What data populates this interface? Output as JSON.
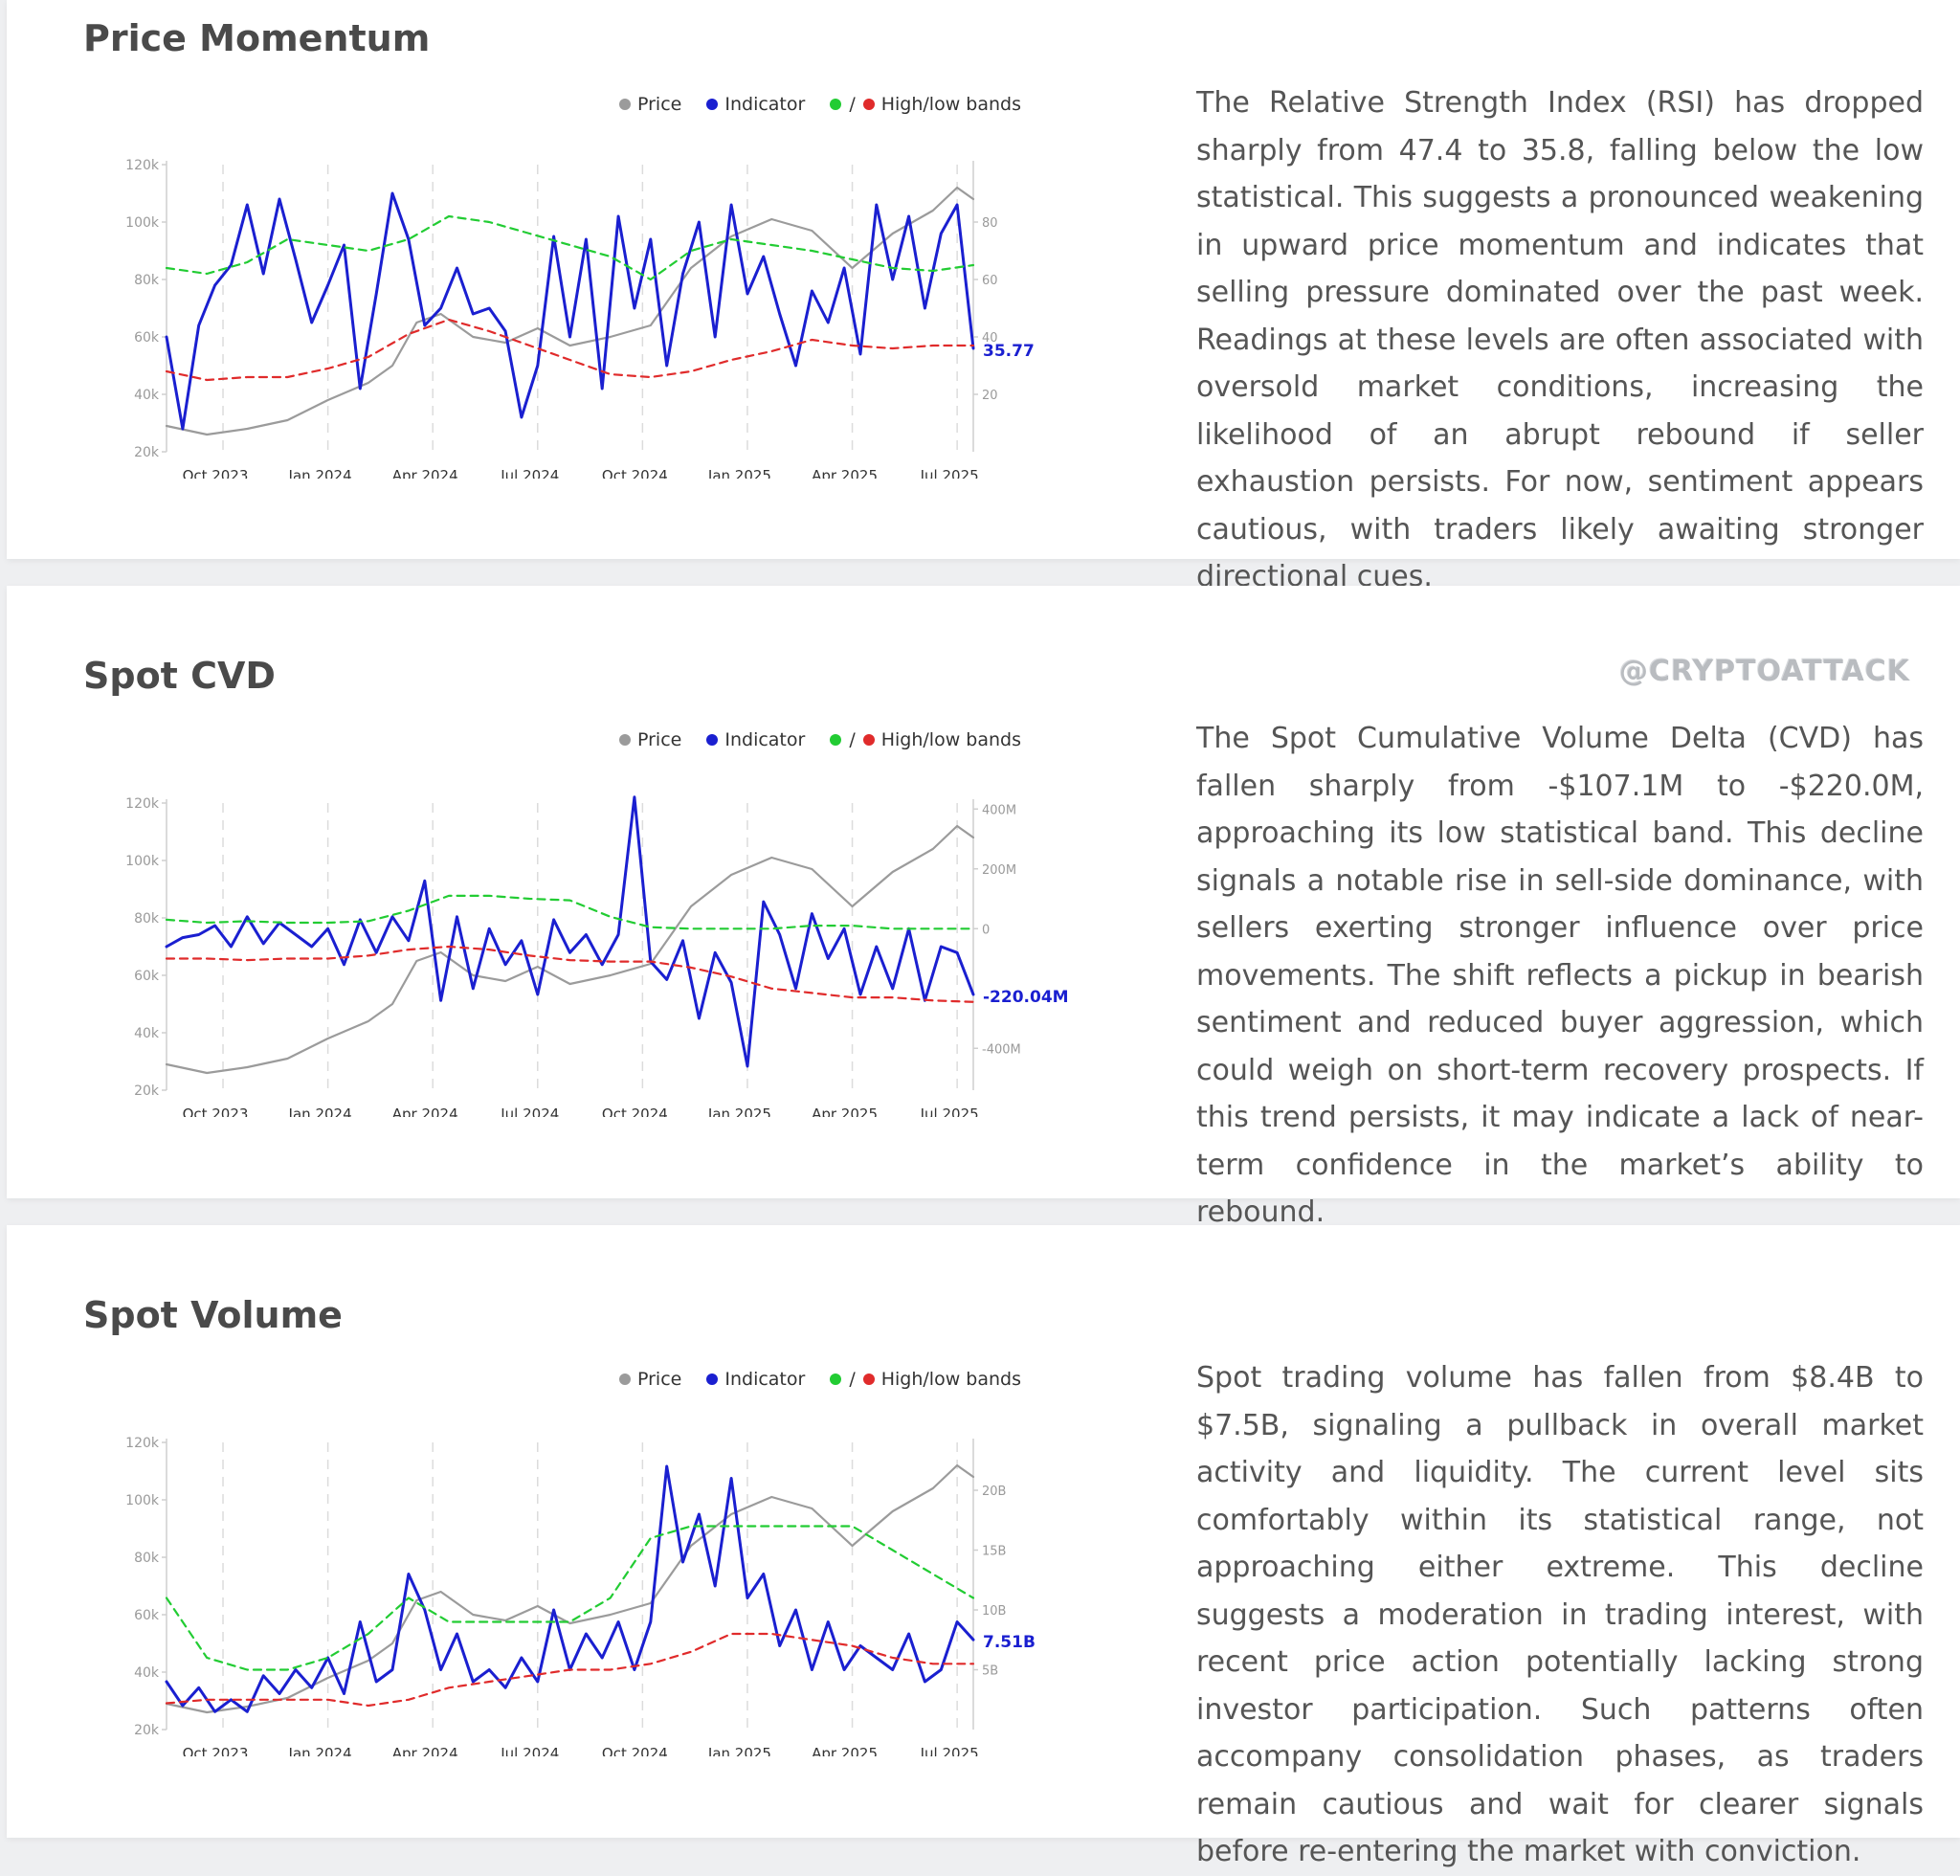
{
  "legend": {
    "price": "Price",
    "indicator": "Indicator",
    "bands": "High/low bands",
    "colors": {
      "price": "#9b9b9b",
      "indicator": "#1a1fd0",
      "high": "#22cc33",
      "low": "#e02b2b"
    }
  },
  "watermark": "@CRYPTOATTACK",
  "panels": [
    {
      "title": "Price Momentum",
      "description": "The Relative Strength Index (RSI) has dropped sharply from 47.4 to 35.8, falling below the low statistical. This suggests a pronounced weakening in upward price momentum and indicates that selling pressure dominated over the past week. Readings at these levels are often associated with oversold market conditions, increasing the likelihood of an abrupt rebound if seller exhaustion persists. For now, sentiment appears cautious, with traders likely awaiting stronger directional cues."
    },
    {
      "title": "Spot CVD",
      "description": "The Spot Cumulative Volume Delta (CVD) has fallen sharply from -$107.1M to -$220.0M, approaching its low statistical band. This decline signals a notable rise in sell-side dominance, with sellers exerting stronger influence over price movements. The shift reflects a pickup in bearish sentiment and reduced buyer aggression, which could weigh on short-term recovery prospects. If this trend persists, it may indicate a lack of near-term confidence in the market’s ability to rebound."
    },
    {
      "title": "Spot Volume",
      "description": "Spot trading volume has fallen from $8.4B to $7.5B, signaling a pullback in overall market activity and liquidity. The current level sits comfortably within its statistical range, not approaching either extreme. This decline suggests a moderation in trading interest, with recent price action potentially lacking strong investor participation. Such patterns often accompany consolidation phases, as traders remain cautious and wait for clearer signals before re-entering the market with conviction."
    }
  ],
  "chart_data": [
    {
      "type": "line",
      "x_tick_labels": [
        "Oct 2023",
        "Jan 2024",
        "Apr 2024",
        "Jul 2024",
        "Oct 2024",
        "Jan 2025",
        "Apr 2025",
        "Jul 2025"
      ],
      "x_ticks_t": [
        0.07,
        0.2,
        0.33,
        0.46,
        0.59,
        0.72,
        0.85,
        0.98
      ],
      "xlim": [
        0,
        1
      ],
      "left_axis": {
        "ticks": [
          "20k",
          "40k",
          "60k",
          "80k",
          "100k",
          "120k"
        ],
        "values": [
          20,
          40,
          60,
          80,
          100,
          120
        ],
        "ylim": [
          20,
          120
        ]
      },
      "right_axis": {
        "ticks": [
          "20",
          "40",
          "60",
          "80"
        ],
        "values": [
          20,
          40,
          60,
          80
        ],
        "ylim": [
          0,
          100
        ]
      },
      "last_value_label": "35.77",
      "series": [
        {
          "name": "Price",
          "axis": "left",
          "x": [
            0,
            0.05,
            0.1,
            0.15,
            0.2,
            0.25,
            0.28,
            0.31,
            0.34,
            0.38,
            0.42,
            0.46,
            0.5,
            0.55,
            0.6,
            0.65,
            0.7,
            0.75,
            0.8,
            0.85,
            0.9,
            0.95,
            0.98,
            1
          ],
          "y": [
            29,
            26,
            28,
            31,
            38,
            44,
            50,
            65,
            68,
            60,
            58,
            63,
            57,
            60,
            64,
            84,
            95,
            101,
            97,
            84,
            96,
            104,
            112,
            108
          ]
        },
        {
          "name": "Indicator",
          "axis": "right",
          "x": [
            0,
            0.02,
            0.04,
            0.06,
            0.08,
            0.1,
            0.12,
            0.14,
            0.16,
            0.18,
            0.2,
            0.22,
            0.24,
            0.26,
            0.28,
            0.3,
            0.32,
            0.34,
            0.36,
            0.38,
            0.4,
            0.42,
            0.44,
            0.46,
            0.48,
            0.5,
            0.52,
            0.54,
            0.56,
            0.58,
            0.6,
            0.62,
            0.64,
            0.66,
            0.68,
            0.7,
            0.72,
            0.74,
            0.76,
            0.78,
            0.8,
            0.82,
            0.84,
            0.86,
            0.88,
            0.9,
            0.92,
            0.94,
            0.96,
            0.98,
            1
          ],
          "y": [
            40,
            8,
            44,
            58,
            65,
            86,
            62,
            88,
            67,
            45,
            58,
            72,
            22,
            55,
            90,
            74,
            44,
            50,
            64,
            48,
            50,
            42,
            12,
            30,
            75,
            40,
            74,
            22,
            82,
            50,
            74,
            30,
            62,
            80,
            40,
            86,
            55,
            68,
            48,
            30,
            56,
            45,
            64,
            34,
            86,
            60,
            82,
            50,
            76,
            86,
            36
          ]
        },
        {
          "name": "High band",
          "axis": "right",
          "x": [
            0,
            0.05,
            0.1,
            0.15,
            0.2,
            0.25,
            0.3,
            0.35,
            0.4,
            0.45,
            0.5,
            0.55,
            0.6,
            0.65,
            0.7,
            0.75,
            0.8,
            0.85,
            0.9,
            0.95,
            1
          ],
          "y": [
            64,
            62,
            66,
            74,
            72,
            70,
            74,
            82,
            80,
            76,
            72,
            68,
            60,
            70,
            74,
            72,
            70,
            67,
            64,
            63,
            65
          ]
        },
        {
          "name": "Low band",
          "axis": "right",
          "x": [
            0,
            0.05,
            0.1,
            0.15,
            0.2,
            0.25,
            0.3,
            0.35,
            0.4,
            0.45,
            0.5,
            0.55,
            0.6,
            0.65,
            0.7,
            0.75,
            0.8,
            0.85,
            0.9,
            0.95,
            1
          ],
          "y": [
            28,
            25,
            26,
            26,
            29,
            33,
            41,
            46,
            42,
            37,
            32,
            27,
            26,
            28,
            32,
            35,
            39,
            37,
            36,
            37,
            37
          ]
        }
      ]
    },
    {
      "type": "line",
      "x_tick_labels": [
        "Oct 2023",
        "Jan 2024",
        "Apr 2024",
        "Jul 2024",
        "Oct 2024",
        "Jan 2025",
        "Apr 2025",
        "Jul 2025"
      ],
      "x_ticks_t": [
        0.07,
        0.2,
        0.33,
        0.46,
        0.59,
        0.72,
        0.85,
        0.98
      ],
      "xlim": [
        0,
        1
      ],
      "left_axis": {
        "ticks": [
          "20k",
          "40k",
          "60k",
          "80k",
          "100k",
          "120k"
        ],
        "values": [
          20,
          40,
          60,
          80,
          100,
          120
        ],
        "ylim": [
          20,
          120
        ]
      },
      "right_axis": {
        "ticks": [
          "-400M",
          "0",
          "200M",
          "400M"
        ],
        "values": [
          -400,
          0,
          200,
          400
        ],
        "ylim": [
          -540,
          420
        ]
      },
      "last_value_label": "-220.04M",
      "series": [
        {
          "name": "Price",
          "axis": "left",
          "x": [
            0,
            0.05,
            0.1,
            0.15,
            0.2,
            0.25,
            0.28,
            0.31,
            0.34,
            0.38,
            0.42,
            0.46,
            0.5,
            0.55,
            0.6,
            0.65,
            0.7,
            0.75,
            0.8,
            0.85,
            0.9,
            0.95,
            0.98,
            1
          ],
          "y": [
            29,
            26,
            28,
            31,
            38,
            44,
            50,
            65,
            68,
            60,
            58,
            63,
            57,
            60,
            64,
            84,
            95,
            101,
            97,
            84,
            96,
            104,
            112,
            108
          ]
        },
        {
          "name": "Indicator",
          "axis": "right",
          "x": [
            0,
            0.02,
            0.04,
            0.06,
            0.08,
            0.1,
            0.12,
            0.14,
            0.16,
            0.18,
            0.2,
            0.22,
            0.24,
            0.26,
            0.28,
            0.3,
            0.32,
            0.34,
            0.36,
            0.38,
            0.4,
            0.42,
            0.44,
            0.46,
            0.48,
            0.5,
            0.52,
            0.54,
            0.56,
            0.58,
            0.6,
            0.62,
            0.64,
            0.66,
            0.68,
            0.7,
            0.72,
            0.74,
            0.76,
            0.78,
            0.8,
            0.82,
            0.84,
            0.86,
            0.88,
            0.9,
            0.92,
            0.94,
            0.96,
            0.98,
            1
          ],
          "y": [
            -60,
            -30,
            -20,
            10,
            -60,
            40,
            -50,
            20,
            -20,
            -60,
            0,
            -120,
            30,
            -80,
            40,
            -40,
            160,
            -240,
            40,
            -200,
            0,
            -120,
            -40,
            -220,
            30,
            -80,
            -20,
            -120,
            -20,
            440,
            -110,
            -170,
            -40,
            -300,
            -80,
            -180,
            -460,
            90,
            -20,
            -200,
            50,
            -100,
            0,
            -220,
            -60,
            -200,
            0,
            -240,
            -60,
            -80,
            -220
          ]
        },
        {
          "name": "High band",
          "axis": "right",
          "x": [
            0,
            0.05,
            0.1,
            0.15,
            0.2,
            0.25,
            0.3,
            0.35,
            0.4,
            0.45,
            0.5,
            0.55,
            0.6,
            0.65,
            0.7,
            0.75,
            0.8,
            0.85,
            0.9,
            0.95,
            1
          ],
          "y": [
            30,
            20,
            25,
            20,
            20,
            25,
            60,
            110,
            110,
            100,
            95,
            40,
            5,
            0,
            0,
            0,
            10,
            10,
            0,
            0,
            0
          ]
        },
        {
          "name": "Low band",
          "axis": "right",
          "x": [
            0,
            0.05,
            0.1,
            0.15,
            0.2,
            0.25,
            0.3,
            0.35,
            0.4,
            0.45,
            0.5,
            0.55,
            0.6,
            0.65,
            0.7,
            0.75,
            0.8,
            0.85,
            0.9,
            0.95,
            1
          ],
          "y": [
            -100,
            -100,
            -105,
            -100,
            -100,
            -90,
            -70,
            -60,
            -70,
            -90,
            -105,
            -110,
            -110,
            -130,
            -160,
            -200,
            -215,
            -230,
            -230,
            -240,
            -245
          ]
        }
      ]
    },
    {
      "type": "line",
      "x_tick_labels": [
        "Oct 2023",
        "Jan 2024",
        "Apr 2024",
        "Jul 2024",
        "Oct 2024",
        "Jan 2025",
        "Apr 2025",
        "Jul 2025"
      ],
      "x_ticks_t": [
        0.07,
        0.2,
        0.33,
        0.46,
        0.59,
        0.72,
        0.85,
        0.98
      ],
      "xlim": [
        0,
        1
      ],
      "left_axis": {
        "ticks": [
          "20k",
          "40k",
          "60k",
          "80k",
          "100k",
          "120k"
        ],
        "values": [
          20,
          40,
          60,
          80,
          100,
          120
        ],
        "ylim": [
          20,
          120
        ]
      },
      "right_axis": {
        "ticks": [
          "5B",
          "10B",
          "15B",
          "20B"
        ],
        "values": [
          5,
          10,
          15,
          20
        ],
        "ylim": [
          0,
          24
        ]
      },
      "last_value_label": "7.51B",
      "series": [
        {
          "name": "Price",
          "axis": "left",
          "x": [
            0,
            0.05,
            0.1,
            0.15,
            0.2,
            0.25,
            0.28,
            0.31,
            0.34,
            0.38,
            0.42,
            0.46,
            0.5,
            0.55,
            0.6,
            0.65,
            0.7,
            0.75,
            0.8,
            0.85,
            0.9,
            0.95,
            0.98,
            1
          ],
          "y": [
            29,
            26,
            28,
            31,
            38,
            44,
            50,
            65,
            68,
            60,
            58,
            63,
            57,
            60,
            64,
            84,
            95,
            101,
            97,
            84,
            96,
            104,
            112,
            108
          ]
        },
        {
          "name": "Indicator",
          "axis": "right",
          "x": [
            0,
            0.02,
            0.04,
            0.06,
            0.08,
            0.1,
            0.12,
            0.14,
            0.16,
            0.18,
            0.2,
            0.22,
            0.24,
            0.26,
            0.28,
            0.3,
            0.32,
            0.34,
            0.36,
            0.38,
            0.4,
            0.42,
            0.44,
            0.46,
            0.48,
            0.5,
            0.52,
            0.54,
            0.56,
            0.58,
            0.6,
            0.62,
            0.64,
            0.66,
            0.68,
            0.7,
            0.72,
            0.74,
            0.76,
            0.78,
            0.8,
            0.82,
            0.84,
            0.86,
            0.88,
            0.9,
            0.92,
            0.94,
            0.96,
            0.98,
            1
          ],
          "y": [
            4,
            2,
            3.5,
            1.5,
            2.5,
            1.5,
            4.5,
            3,
            5,
            3.5,
            6,
            3,
            9,
            4,
            5,
            13,
            10,
            5,
            8,
            4,
            5,
            3.5,
            6,
            4,
            10,
            5,
            8,
            6,
            9,
            5,
            9,
            22,
            14,
            18,
            12,
            21,
            11,
            13,
            7,
            10,
            5,
            9,
            5,
            7,
            6,
            5,
            8,
            4,
            5,
            9,
            7.51
          ]
        },
        {
          "name": "High band",
          "axis": "right",
          "x": [
            0,
            0.05,
            0.1,
            0.15,
            0.2,
            0.25,
            0.3,
            0.35,
            0.4,
            0.45,
            0.5,
            0.55,
            0.6,
            0.65,
            0.7,
            0.75,
            0.8,
            0.85,
            0.9,
            0.95,
            1
          ],
          "y": [
            11,
            6,
            5,
            5,
            6,
            8,
            11,
            9,
            9,
            9,
            9,
            11,
            16,
            17,
            17,
            17,
            17,
            17,
            15,
            13,
            11
          ]
        },
        {
          "name": "Low band",
          "axis": "right",
          "x": [
            0,
            0.05,
            0.1,
            0.15,
            0.2,
            0.25,
            0.3,
            0.35,
            0.4,
            0.45,
            0.5,
            0.55,
            0.6,
            0.65,
            0.7,
            0.75,
            0.8,
            0.85,
            0.9,
            0.95,
            1
          ],
          "y": [
            2.2,
            2.5,
            2.5,
            2.5,
            2.5,
            2,
            2.5,
            3.5,
            4,
            4.5,
            5,
            5,
            5.5,
            6.5,
            8,
            8,
            7.5,
            7,
            6,
            5.5,
            5.5
          ]
        }
      ]
    }
  ]
}
